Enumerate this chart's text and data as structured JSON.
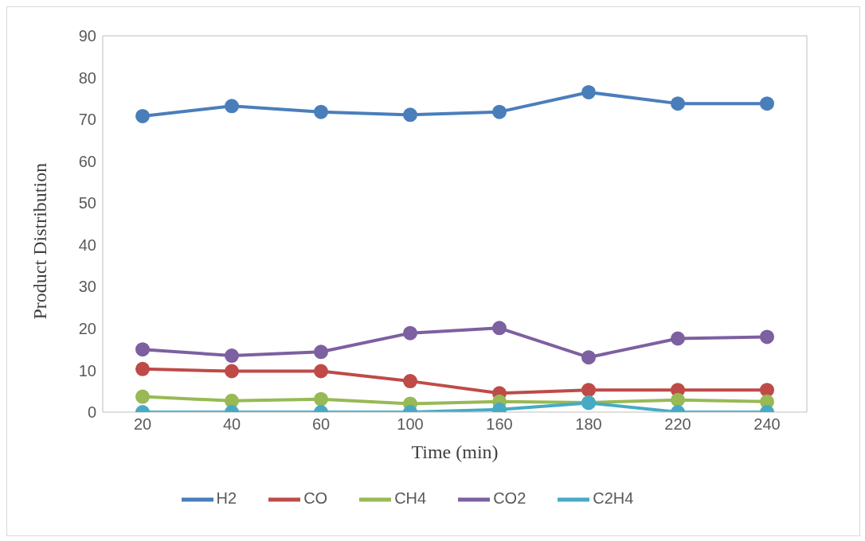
{
  "chart_data": {
    "type": "line",
    "xlabel": "Time (min)",
    "ylabel": "Product Distribution",
    "categories": [
      "20",
      "40",
      "60",
      "100",
      "160",
      "180",
      "220",
      "240"
    ],
    "ylim": [
      0,
      90
    ],
    "yticks": [
      0,
      10,
      20,
      30,
      40,
      50,
      60,
      70,
      80,
      90
    ],
    "grid": false,
    "legend": "bottom",
    "marker": "circle",
    "line_style": "solid",
    "series": [
      {
        "name": "H2",
        "color": "#4a7ebb",
        "values": [
          70.8,
          73.2,
          71.8,
          71.1,
          71.8,
          76.5,
          73.8,
          73.8
        ]
      },
      {
        "name": "CO",
        "color": "#be4b48",
        "values": [
          10.3,
          9.8,
          9.8,
          7.4,
          4.5,
          5.3,
          5.3,
          5.3
        ]
      },
      {
        "name": "CH4",
        "color": "#98b954",
        "values": [
          3.7,
          2.7,
          3.1,
          2.0,
          2.5,
          2.3,
          2.9,
          2.5
        ]
      },
      {
        "name": "CO2",
        "color": "#7d60a0",
        "values": [
          15.0,
          13.5,
          14.4,
          18.9,
          20.1,
          13.1,
          17.6,
          18.0
        ]
      },
      {
        "name": "C2H4",
        "color": "#46aac5",
        "values": [
          0,
          0,
          0,
          0,
          0.6,
          2.2,
          0,
          0
        ]
      }
    ]
  }
}
